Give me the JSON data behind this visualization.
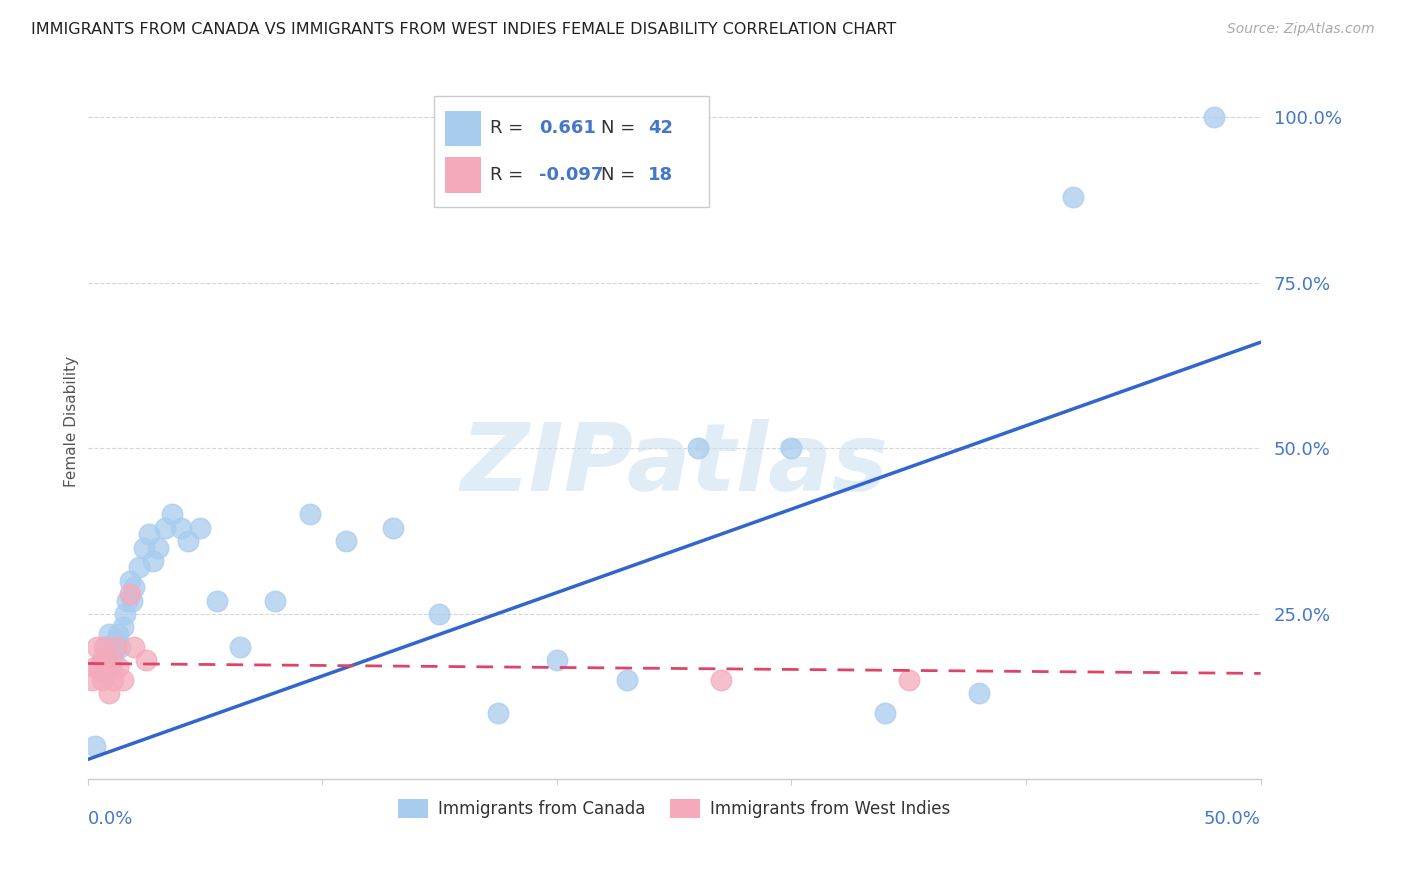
{
  "title": "IMMIGRANTS FROM CANADA VS IMMIGRANTS FROM WEST INDIES FEMALE DISABILITY CORRELATION CHART",
  "source": "Source: ZipAtlas.com",
  "ylabel": "Female Disability",
  "xlim": [
    0.0,
    0.5
  ],
  "ylim": [
    0.0,
    1.08
  ],
  "canada_R": 0.661,
  "canada_N": 42,
  "wi_R": -0.097,
  "wi_N": 18,
  "canada_color": "#a8ccee",
  "wi_color": "#f4aabb",
  "canada_line_color": "#3366cc",
  "wi_line_color": "#dd4466",
  "canada_x": [
    0.003,
    0.006,
    0.007,
    0.008,
    0.009,
    0.01,
    0.011,
    0.012,
    0.013,
    0.014,
    0.015,
    0.016,
    0.017,
    0.018,
    0.019,
    0.02,
    0.022,
    0.024,
    0.026,
    0.028,
    0.03,
    0.033,
    0.036,
    0.04,
    0.043,
    0.048,
    0.055,
    0.065,
    0.08,
    0.095,
    0.11,
    0.13,
    0.15,
    0.175,
    0.2,
    0.23,
    0.26,
    0.3,
    0.34,
    0.38,
    0.42,
    0.48
  ],
  "canada_y": [
    0.05,
    0.18,
    0.16,
    0.2,
    0.22,
    0.17,
    0.19,
    0.21,
    0.22,
    0.2,
    0.23,
    0.25,
    0.27,
    0.3,
    0.27,
    0.29,
    0.32,
    0.35,
    0.37,
    0.33,
    0.35,
    0.38,
    0.4,
    0.38,
    0.36,
    0.38,
    0.27,
    0.2,
    0.27,
    0.4,
    0.36,
    0.38,
    0.25,
    0.1,
    0.18,
    0.15,
    0.5,
    0.5,
    0.1,
    0.13,
    0.88,
    1.0
  ],
  "wi_x": [
    0.002,
    0.003,
    0.004,
    0.005,
    0.006,
    0.007,
    0.008,
    0.009,
    0.01,
    0.011,
    0.012,
    0.013,
    0.015,
    0.018,
    0.02,
    0.025,
    0.27,
    0.35
  ],
  "wi_y": [
    0.15,
    0.17,
    0.2,
    0.17,
    0.15,
    0.2,
    0.18,
    0.13,
    0.17,
    0.15,
    0.2,
    0.17,
    0.15,
    0.28,
    0.2,
    0.18,
    0.15,
    0.15
  ],
  "canada_line_x0": 0.0,
  "canada_line_y0": 0.03,
  "canada_line_x1": 0.5,
  "canada_line_y1": 0.66,
  "wi_line_x0": 0.0,
  "wi_line_y0": 0.175,
  "wi_line_x1": 0.5,
  "wi_line_y1": 0.16,
  "yticks": [
    0.0,
    0.25,
    0.5,
    0.75,
    1.0
  ],
  "ytick_labels": [
    "",
    "25.0%",
    "50.0%",
    "75.0%",
    "100.0%"
  ],
  "watermark_text": "ZIPatlas",
  "legend_label_canada": "Immigrants from Canada",
  "legend_label_wi": "Immigrants from West Indies"
}
